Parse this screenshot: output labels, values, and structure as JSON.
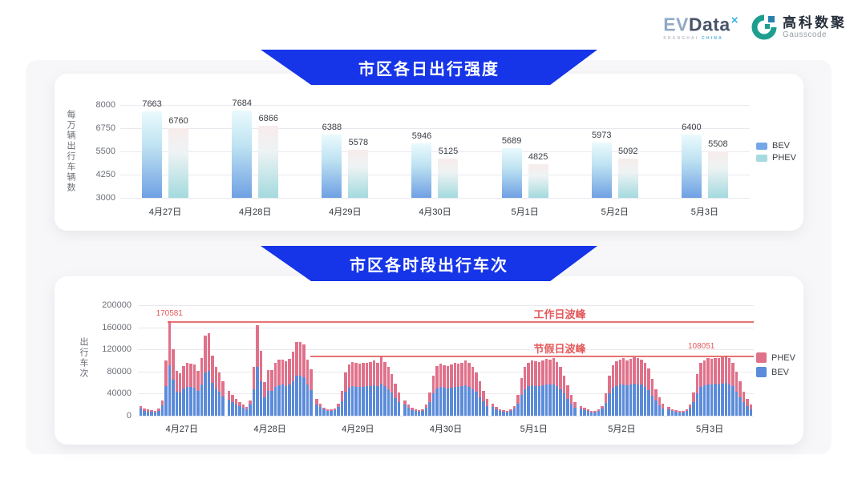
{
  "header": {
    "evdata": {
      "ev": "EV",
      "data": "Data",
      "sup": "×",
      "subtext_left": "SHANGHAI",
      "subtext_right": "CHINA"
    },
    "gausscode": {
      "name": "高科数聚",
      "latin": "Gausscode"
    }
  },
  "colors": {
    "banner_blue": "#1634e8",
    "bev_gradient_top": "#eafafd",
    "bev_gradient_mid": "#bfe3f2",
    "bev_gradient_bottom": "#6fa0e3",
    "phev_gradient_top": "#f7eceb",
    "phev_gradient_mid": "#eef3f4",
    "phev_gradient_bottom": "#a3dade",
    "legend_bev_swatch": "#74a7e8",
    "legend_phev_swatch": "#a6dae0",
    "bev_solid": "#5b8bd9",
    "phev_solid": "#e0718a",
    "peak_red": "#e4595b",
    "panel_gray": "#f7f7f9"
  },
  "chart_data": [
    {
      "type": "bar",
      "subtype": "grouped-gradient",
      "title": "市区各日出行强度",
      "ylabel": "每万辆出行车辆数",
      "yticks": [
        8000,
        6750,
        5500,
        4250,
        3000
      ],
      "ylim": [
        3000,
        8000
      ],
      "grid": true,
      "legend_position": "right",
      "categories": [
        "4月27日",
        "4月28日",
        "4月29日",
        "4月30日",
        "5月1日",
        "5月2日",
        "5月3日"
      ],
      "series": [
        {
          "name": "BEV",
          "values": [
            7663,
            7684,
            6388,
            5946,
            5689,
            5973,
            6400
          ]
        },
        {
          "name": "PHEV",
          "values": [
            6760,
            6866,
            5578,
            5125,
            4825,
            5092,
            5508
          ]
        }
      ],
      "legend": [
        "BEV",
        "PHEV"
      ]
    },
    {
      "type": "bar",
      "subtype": "stacked-hourly",
      "title": "市区各时段出行车次",
      "ylabel": "出行车次",
      "yticks": [
        200000,
        160000,
        120000,
        80000,
        40000,
        0
      ],
      "ylim": [
        0,
        200000
      ],
      "grid": true,
      "legend_position": "right",
      "hours_per_day": 24,
      "categories": [
        "4月27日",
        "4月28日",
        "4月29日",
        "4月30日",
        "5月1日",
        "5月2日",
        "5月3日"
      ],
      "series": [
        {
          "name": "BEV",
          "days": [
            [
              13000,
              9400,
              7900,
              6800,
              6500,
              9400,
              19000,
              54000,
              91000,
              65000,
              44000,
              42000,
              49000,
              52000,
              52000,
              51000,
              45000,
              57000,
              79000,
              81000,
              59000,
              49000,
              43000,
              35000
            ],
            [
              29000,
              25000,
              21000,
              18000,
              14500,
              11500,
              20000,
              48000,
              88000,
              63000,
              34000,
              45000,
              45000,
              52000,
              55000,
              56000,
              54000,
              56000,
              63000,
              72000,
              72000,
              70000,
              56000,
              46000
            ],
            [
              21000,
              16000,
              11000,
              8800,
              8000,
              9500,
              15500,
              26000,
              43000,
              51000,
              53000,
              52000,
              52000,
              52000,
              53000,
              53000,
              55000,
              53000,
              58000,
              53000,
              48000,
              42000,
              32000,
              24000
            ],
            [
              20000,
              14500,
              10000,
              8000,
              7300,
              8700,
              14000,
              24000,
              40000,
              49000,
              52000,
              51000,
              50000,
              51000,
              52000,
              52000,
              53000,
              55000,
              52000,
              48000,
              43000,
              34000,
              26000,
              17000
            ],
            [
              16000,
              11500,
              8700,
              7200,
              6500,
              8000,
              13000,
              22000,
              37000,
              48000,
              53000,
              55000,
              54000,
              53000,
              55000,
              57000,
              56000,
              57000,
              53000,
              48000,
              40000,
              30000,
              22000,
              15000
            ],
            [
              13000,
              10000,
              8000,
              6500,
              6500,
              8000,
              13000,
              23000,
              40000,
              51000,
              54000,
              56000,
              57000,
              55000,
              57000,
              58000,
              57000,
              56000,
              52000,
              47000,
              36000,
              27000,
              19000,
              13000
            ],
            [
              11500,
              8700,
              7200,
              6500,
              6500,
              8700,
              14000,
              24000,
              41000,
              52000,
              55000,
              57000,
              57000,
              58000,
              57000,
              58000,
              59000,
              57000,
              53000,
              44000,
              34000,
              25000,
              17000,
              12000
            ]
          ]
        },
        {
          "name": "PHEV",
          "days": [
            [
              5000,
              3600,
              3100,
              2700,
              2500,
              3600,
              8000,
              46500,
              79581,
              55000,
              37000,
              34500,
              41000,
              43000,
              42500,
              42000,
              36500,
              48000,
              66500,
              68000,
              49500,
              40000,
              35000,
              27000
            ],
            [
              16000,
              12000,
              9000,
              7000,
              5500,
              4500,
              8000,
              40000,
              76000,
              54000,
              27000,
              38000,
              37000,
              44000,
              46000,
              46000,
              44000,
              47000,
              53000,
              62000,
              61000,
              59000,
              46000,
              38000
            ],
            [
              9000,
              6000,
              4000,
              3200,
              3000,
              3500,
              6500,
              19000,
              35000,
              42000,
              44000,
              43000,
              42000,
              43000,
              43000,
              44000,
              45000,
              43000,
              49000,
              44000,
              40000,
              34000,
              26000,
              18000
            ],
            [
              8000,
              5500,
              4000,
              3000,
              2700,
              3300,
              6000,
              18000,
              32000,
              41000,
              42000,
              41000,
              40000,
              42000,
              43000,
              42000,
              43000,
              45000,
              43000,
              40000,
              35000,
              28000,
              19000,
              13000
            ],
            [
              6000,
              4500,
              3300,
              2800,
              2500,
              3000,
              5000,
              16000,
              31000,
              40000,
              43000,
              45000,
              44000,
              44000,
              45000,
              46000,
              45000,
              47000,
              44000,
              40000,
              32000,
              25000,
              16000,
              10000
            ],
            [
              5000,
              4000,
              3000,
              2500,
              2500,
              3000,
              5000,
              17000,
              32000,
              41000,
              44000,
              46000,
              47000,
              45000,
              46000,
              48000,
              47000,
              45000,
              43000,
              38000,
              30000,
              21000,
              14000,
              9000
            ],
            [
              4500,
              3300,
              2800,
              2500,
              2500,
              3300,
              6000,
              18000,
              34000,
              43000,
              45000,
              47000,
              46000,
              47000,
              47000,
              48000,
              49051,
              47000,
              43000,
              36000,
              28000,
              19000,
              13000,
              8000
            ]
          ]
        }
      ],
      "legend": [
        "PHEV",
        "BEV"
      ],
      "annotations": [
        {
          "type": "peak-line",
          "label": "工作日波峰",
          "value_label": "170581",
          "value": 170581
        },
        {
          "type": "peak-line",
          "label": "节假日波峰",
          "value_label": "108051",
          "value": 108051
        }
      ]
    }
  ]
}
